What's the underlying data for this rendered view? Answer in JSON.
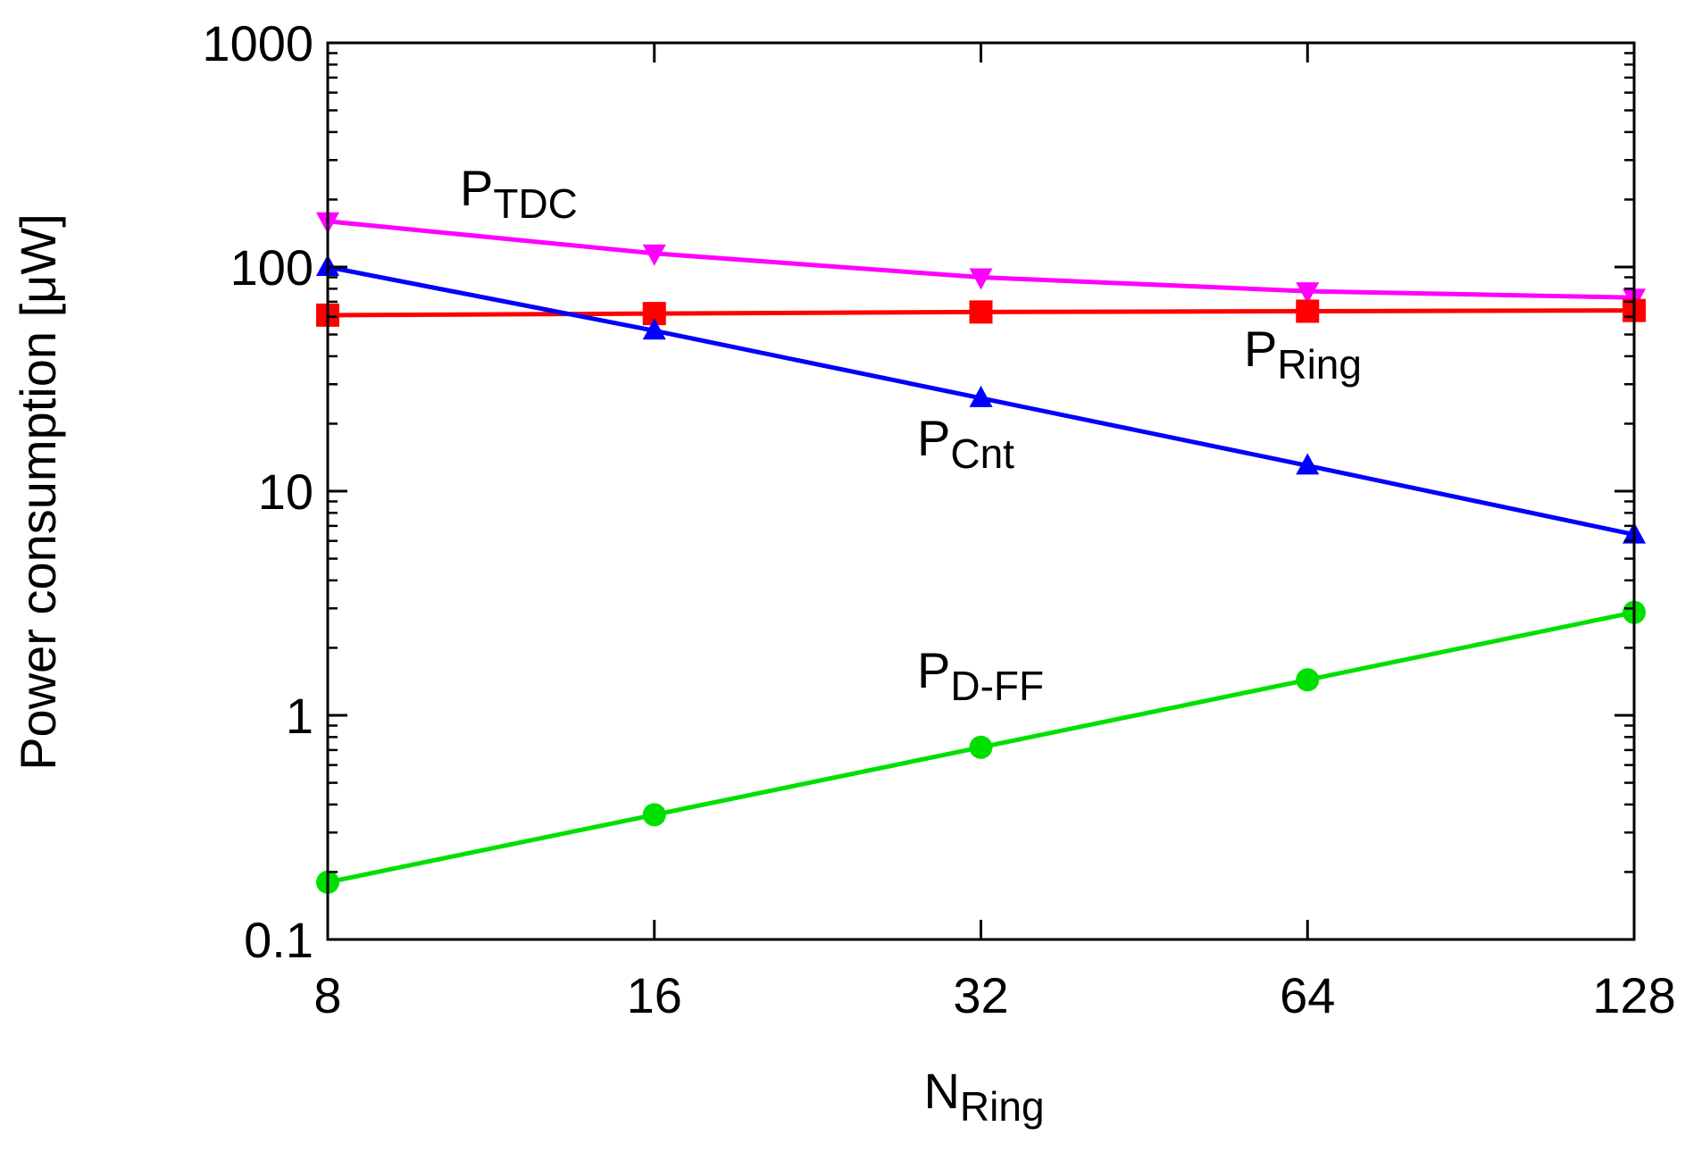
{
  "chart_data": {
    "type": "line",
    "title": "",
    "xscale": "log2",
    "yscale": "log10",
    "x": [
      8,
      16,
      32,
      64,
      128
    ],
    "xlim": [
      8,
      128
    ],
    "ylim": [
      0.1,
      1000
    ],
    "xticks": [
      8,
      16,
      32,
      64,
      128
    ],
    "xtick_labels": [
      "8",
      "16",
      "32",
      "64",
      "128"
    ],
    "yticks": [
      0.1,
      1,
      10,
      100,
      1000
    ],
    "ytick_labels": [
      "0.1",
      "1",
      "10",
      "100",
      "1000"
    ],
    "xlabel": {
      "main": "N",
      "sub": "Ring"
    },
    "ylabel": "Power consumption [μW]",
    "grid": false,
    "series": [
      {
        "name": "P_TDC",
        "label_main": "P",
        "label_sub": "TDC",
        "color": "#ff00ff",
        "marker": "triangle-down",
        "values": [
          160,
          115,
          90,
          78,
          73
        ]
      },
      {
        "name": "P_Ring",
        "label_main": "P",
        "label_sub": "Ring",
        "color": "#ff0000",
        "marker": "square",
        "values": [
          61,
          62,
          63,
          63.5,
          64
        ]
      },
      {
        "name": "P_Cnt",
        "label_main": "P",
        "label_sub": "Cnt",
        "color": "#0000ff",
        "marker": "triangle-up",
        "values": [
          100,
          52,
          26,
          13,
          6.4
        ]
      },
      {
        "name": "P_D-FF",
        "label_main": "P",
        "label_sub": "D-FF",
        "color": "#00e000",
        "marker": "circle",
        "values": [
          0.18,
          0.36,
          0.72,
          1.44,
          2.88
        ]
      }
    ]
  }
}
